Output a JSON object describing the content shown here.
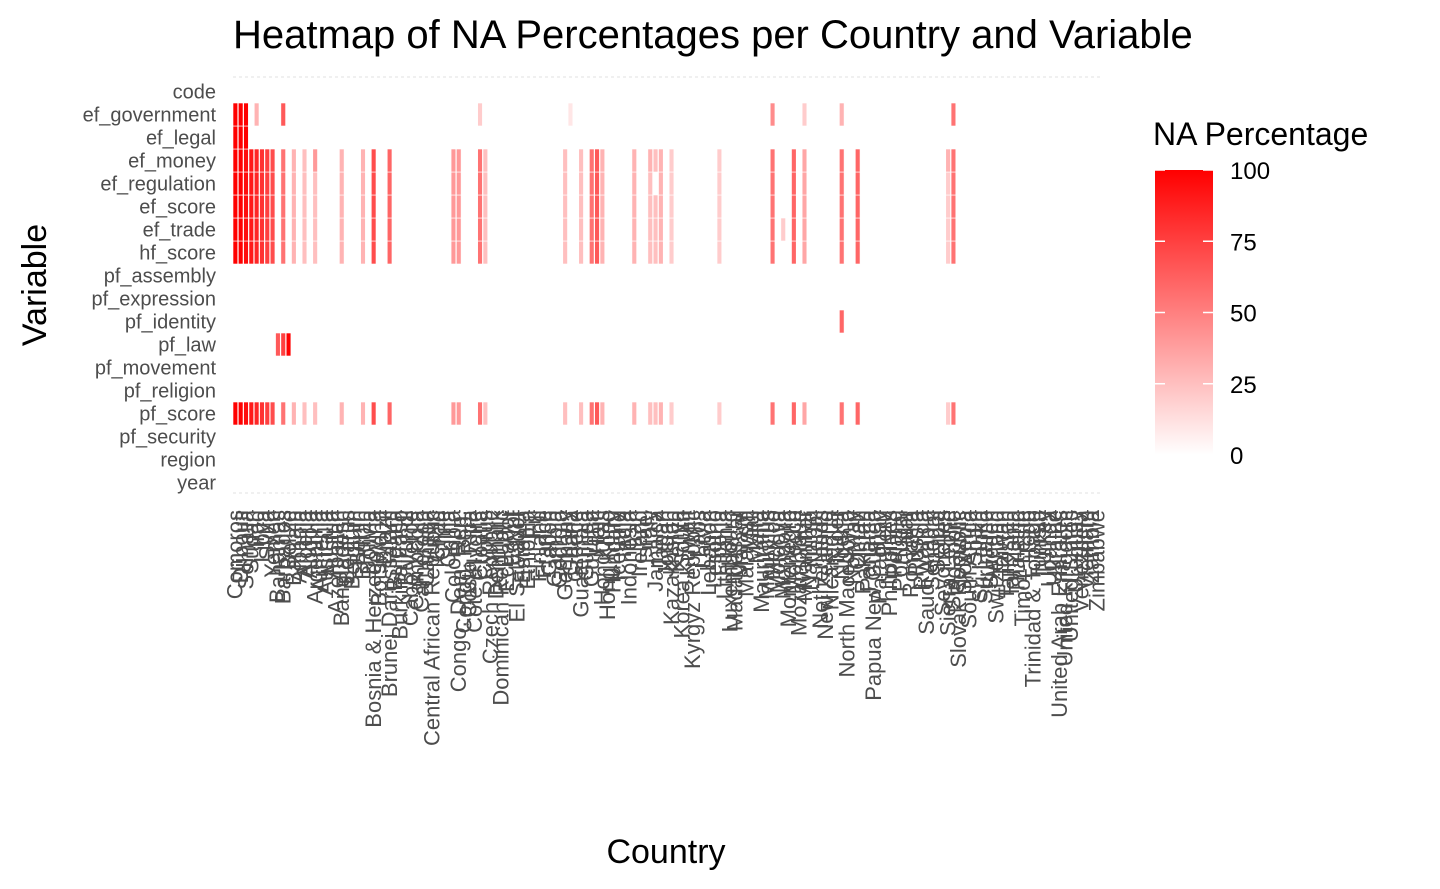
{
  "chart_data": {
    "type": "heatmap",
    "title": "Heatmap of NA Percentages per Country and Variable",
    "xlabel": "Country",
    "ylabel": "Variable",
    "variables": [
      "year",
      "region",
      "pf_security",
      "pf_score",
      "pf_religion",
      "pf_movement",
      "pf_law",
      "pf_identity",
      "pf_expression",
      "pf_assembly",
      "hf_score",
      "ef_trade",
      "ef_score",
      "ef_regulation",
      "ef_money",
      "ef_legal",
      "ef_government",
      "code"
    ],
    "countries": [
      "Comoros",
      "Djibouti",
      "Somalia",
      "Sudan",
      "Iraq",
      "Libya",
      "Syria",
      "Yemen",
      "Bahamas",
      "Barbados",
      "Belize",
      "Bahrain",
      "Albania",
      "Algeria",
      "Angola",
      "Argentina",
      "Armenia",
      "Australia",
      "Austria",
      "Azerbaijan",
      "Bangladesh",
      "Belarus",
      "Belgium",
      "Benin",
      "Bhutan",
      "Bolivia",
      "Bosnia & Herzegovina",
      "Botswana",
      "Brazil",
      "Brunei Darussalam",
      "Bulgaria",
      "Burkina Faso",
      "Burundi",
      "Cabo Verde",
      "Cambodia",
      "Cameroon",
      "Canada",
      "Central African Republic",
      "Chad",
      "Chile",
      "China",
      "Colombia",
      "Congo, Dem. Rep.",
      "Congo, Rep.",
      "Costa Rica",
      "Cote d'Ivoire",
      "Croatia",
      "Cyprus",
      "Czech Republic",
      "Denmark",
      "Dominican Republic",
      "Ecuador",
      "Egypt",
      "El Salvador",
      "Estonia",
      "Ethiopia",
      "Fiji",
      "Finland",
      "France",
      "Gabon",
      "Gambia",
      "Georgia",
      "Germany",
      "Ghana",
      "Greece",
      "Guatemala",
      "Guinea",
      "Guyana",
      "Haiti",
      "Honduras",
      "Hong Kong",
      "Hungary",
      "Iceland",
      "India",
      "Indonesia",
      "Iran",
      "Ireland",
      "Israel",
      "Italy",
      "Jamaica",
      "Japan",
      "Jordan",
      "Kazakhstan",
      "Kenya",
      "Korea, South",
      "Kuwait",
      "Kyrgyz Republic",
      "Laos",
      "Latvia",
      "Lebanon",
      "Lesotho",
      "Liberia",
      "Lithuania",
      "Luxembourg",
      "Madagascar",
      "Malawi",
      "Malaysia",
      "Mali",
      "Malta",
      "Mauritania",
      "Mauritius",
      "Mexico",
      "Moldova",
      "Mongolia",
      "Montenegro",
      "Morocco",
      "Mozambique",
      "Myanmar",
      "Namibia",
      "Nepal",
      "Netherlands",
      "New Zealand",
      "Nicaragua",
      "Niger",
      "Nigeria",
      "North Macedonia",
      "Norway",
      "Oman",
      "Pakistan",
      "Panama",
      "Papua New Guinea",
      "Paraguay",
      "Peru",
      "Philippines",
      "Poland",
      "Portugal",
      "Qatar",
      "Romania",
      "Russia",
      "Rwanda",
      "Saudi Arabia",
      "Senegal",
      "Serbia",
      "Seychelles",
      "Sierra Leone",
      "Singapore",
      "Slovak Republic",
      "Slovenia",
      "South Africa",
      "Spain",
      "Sri Lanka",
      "Suriname",
      "Sweden",
      "Switzerland",
      "Taiwan",
      "Tajikistan",
      "Tanzania",
      "Thailand",
      "Timor-Leste",
      "Togo",
      "Trinidad & Tobago",
      "Tunisia",
      "Turkey",
      "Uganda",
      "Ukraine",
      "United Arab Emirates",
      "United Kingdom",
      "United States",
      "Uruguay",
      "Venezuela",
      "Vietnam",
      "Zambia",
      "Zimbabwe"
    ],
    "cells": [
      {
        "row": "pf_score",
        "cols": [
          [
            0,
            100
          ],
          [
            1,
            100
          ],
          [
            2,
            95
          ],
          [
            3,
            90
          ],
          [
            4,
            85
          ],
          [
            5,
            80
          ],
          [
            6,
            75
          ],
          [
            7,
            70
          ],
          [
            9,
            55
          ],
          [
            11,
            30
          ],
          [
            13,
            25
          ],
          [
            15,
            25
          ],
          [
            20,
            30
          ],
          [
            24,
            30
          ],
          [
            26,
            70
          ],
          [
            29,
            60
          ],
          [
            41,
            40
          ],
          [
            42,
            40
          ],
          [
            46,
            55
          ],
          [
            47,
            25
          ],
          [
            62,
            25
          ],
          [
            65,
            25
          ],
          [
            67,
            55
          ],
          [
            68,
            65
          ],
          [
            69,
            30
          ],
          [
            75,
            30
          ],
          [
            78,
            25
          ],
          [
            79,
            25
          ],
          [
            80,
            30
          ],
          [
            82,
            20
          ],
          [
            91,
            20
          ],
          [
            101,
            55
          ],
          [
            105,
            60
          ],
          [
            107,
            35
          ],
          [
            114,
            55
          ],
          [
            117,
            60
          ],
          [
            134,
            20
          ],
          [
            135,
            55
          ]
        ]
      },
      {
        "row": "pf_law",
        "cols": [
          [
            8,
            65
          ],
          [
            9,
            75
          ],
          [
            10,
            100
          ]
        ]
      },
      {
        "row": "pf_identity",
        "cols": [
          [
            114,
            60
          ]
        ]
      },
      {
        "row": "hf_score",
        "cols": [
          [
            0,
            100
          ],
          [
            1,
            100
          ],
          [
            2,
            95
          ],
          [
            3,
            90
          ],
          [
            4,
            85
          ],
          [
            5,
            80
          ],
          [
            6,
            75
          ],
          [
            7,
            70
          ],
          [
            9,
            55
          ],
          [
            11,
            30
          ],
          [
            13,
            25
          ],
          [
            15,
            25
          ],
          [
            20,
            30
          ],
          [
            24,
            30
          ],
          [
            26,
            70
          ],
          [
            29,
            60
          ],
          [
            41,
            40
          ],
          [
            42,
            40
          ],
          [
            46,
            55
          ],
          [
            47,
            25
          ],
          [
            62,
            25
          ],
          [
            65,
            25
          ],
          [
            67,
            55
          ],
          [
            68,
            65
          ],
          [
            69,
            30
          ],
          [
            75,
            30
          ],
          [
            78,
            25
          ],
          [
            79,
            25
          ],
          [
            80,
            30
          ],
          [
            82,
            20
          ],
          [
            91,
            20
          ],
          [
            101,
            55
          ],
          [
            105,
            60
          ],
          [
            107,
            35
          ],
          [
            114,
            55
          ],
          [
            117,
            60
          ],
          [
            134,
            20
          ],
          [
            135,
            55
          ]
        ]
      },
      {
        "row": "ef_trade",
        "cols": [
          [
            0,
            100
          ],
          [
            1,
            100
          ],
          [
            2,
            95
          ],
          [
            3,
            90
          ],
          [
            4,
            85
          ],
          [
            5,
            80
          ],
          [
            6,
            75
          ],
          [
            7,
            70
          ],
          [
            9,
            55
          ],
          [
            11,
            30
          ],
          [
            13,
            25
          ],
          [
            15,
            25
          ],
          [
            20,
            30
          ],
          [
            24,
            30
          ],
          [
            26,
            70
          ],
          [
            29,
            60
          ],
          [
            41,
            40
          ],
          [
            42,
            40
          ],
          [
            46,
            55
          ],
          [
            47,
            25
          ],
          [
            62,
            25
          ],
          [
            65,
            25
          ],
          [
            67,
            55
          ],
          [
            68,
            65
          ],
          [
            69,
            30
          ],
          [
            75,
            30
          ],
          [
            78,
            25
          ],
          [
            79,
            25
          ],
          [
            80,
            30
          ],
          [
            82,
            20
          ],
          [
            91,
            20
          ],
          [
            101,
            55
          ],
          [
            103,
            20
          ],
          [
            105,
            60
          ],
          [
            107,
            35
          ],
          [
            114,
            55
          ],
          [
            117,
            60
          ],
          [
            134,
            20
          ],
          [
            135,
            55
          ]
        ]
      },
      {
        "row": "ef_score",
        "cols": [
          [
            0,
            100
          ],
          [
            1,
            100
          ],
          [
            2,
            95
          ],
          [
            3,
            90
          ],
          [
            4,
            85
          ],
          [
            5,
            80
          ],
          [
            6,
            75
          ],
          [
            7,
            70
          ],
          [
            9,
            55
          ],
          [
            11,
            30
          ],
          [
            13,
            25
          ],
          [
            15,
            25
          ],
          [
            20,
            30
          ],
          [
            24,
            30
          ],
          [
            26,
            70
          ],
          [
            29,
            60
          ],
          [
            41,
            40
          ],
          [
            42,
            40
          ],
          [
            46,
            55
          ],
          [
            47,
            25
          ],
          [
            62,
            25
          ],
          [
            65,
            25
          ],
          [
            67,
            55
          ],
          [
            68,
            65
          ],
          [
            69,
            30
          ],
          [
            75,
            30
          ],
          [
            78,
            25
          ],
          [
            79,
            25
          ],
          [
            80,
            30
          ],
          [
            82,
            20
          ],
          [
            91,
            20
          ],
          [
            101,
            55
          ],
          [
            105,
            60
          ],
          [
            107,
            35
          ],
          [
            114,
            55
          ],
          [
            117,
            60
          ],
          [
            134,
            20
          ],
          [
            135,
            55
          ]
        ]
      },
      {
        "row": "ef_regulation",
        "cols": [
          [
            0,
            100
          ],
          [
            1,
            100
          ],
          [
            2,
            95
          ],
          [
            3,
            90
          ],
          [
            4,
            85
          ],
          [
            5,
            80
          ],
          [
            6,
            75
          ],
          [
            7,
            70
          ],
          [
            9,
            55
          ],
          [
            11,
            30
          ],
          [
            13,
            25
          ],
          [
            15,
            25
          ],
          [
            20,
            30
          ],
          [
            24,
            30
          ],
          [
            26,
            70
          ],
          [
            29,
            60
          ],
          [
            41,
            40
          ],
          [
            42,
            40
          ],
          [
            46,
            55
          ],
          [
            47,
            25
          ],
          [
            62,
            25
          ],
          [
            65,
            25
          ],
          [
            67,
            55
          ],
          [
            68,
            65
          ],
          [
            69,
            30
          ],
          [
            75,
            30
          ],
          [
            78,
            25
          ],
          [
            80,
            30
          ],
          [
            82,
            20
          ],
          [
            91,
            20
          ],
          [
            101,
            55
          ],
          [
            105,
            60
          ],
          [
            107,
            35
          ],
          [
            114,
            55
          ],
          [
            117,
            60
          ],
          [
            134,
            20
          ],
          [
            135,
            55
          ]
        ]
      },
      {
        "row": "ef_money",
        "cols": [
          [
            0,
            100
          ],
          [
            1,
            100
          ],
          [
            2,
            95
          ],
          [
            3,
            90
          ],
          [
            4,
            85
          ],
          [
            5,
            80
          ],
          [
            6,
            75
          ],
          [
            7,
            70
          ],
          [
            9,
            55
          ],
          [
            11,
            30
          ],
          [
            13,
            25
          ],
          [
            15,
            40
          ],
          [
            20,
            30
          ],
          [
            24,
            30
          ],
          [
            26,
            70
          ],
          [
            29,
            60
          ],
          [
            41,
            40
          ],
          [
            42,
            40
          ],
          [
            46,
            55
          ],
          [
            47,
            25
          ],
          [
            62,
            25
          ],
          [
            65,
            25
          ],
          [
            67,
            55
          ],
          [
            68,
            65
          ],
          [
            69,
            30
          ],
          [
            75,
            30
          ],
          [
            78,
            30
          ],
          [
            79,
            25
          ],
          [
            80,
            30
          ],
          [
            82,
            20
          ],
          [
            91,
            20
          ],
          [
            101,
            55
          ],
          [
            105,
            60
          ],
          [
            107,
            35
          ],
          [
            114,
            55
          ],
          [
            117,
            60
          ],
          [
            134,
            30
          ],
          [
            135,
            55
          ]
        ]
      },
      {
        "row": "ef_legal",
        "cols": [
          [
            0,
            100
          ],
          [
            1,
            100
          ],
          [
            2,
            100
          ]
        ]
      },
      {
        "row": "ef_government",
        "cols": [
          [
            0,
            100
          ],
          [
            1,
            100
          ],
          [
            2,
            100
          ],
          [
            4,
            30
          ],
          [
            9,
            65
          ],
          [
            46,
            20
          ],
          [
            63,
            10
          ],
          [
            101,
            45
          ],
          [
            107,
            20
          ],
          [
            114,
            30
          ],
          [
            135,
            55
          ]
        ]
      }
    ],
    "legend": {
      "title": "NA Percentage",
      "ticks": [
        0,
        25,
        50,
        75,
        100
      ],
      "low_color": "#ffffff",
      "high_color": "#ff0000"
    }
  }
}
